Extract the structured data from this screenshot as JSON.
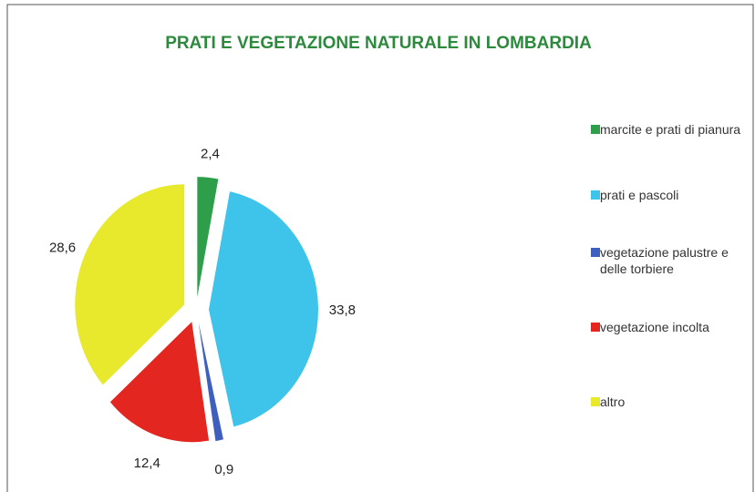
{
  "chart_data": {
    "type": "pie",
    "title": "PRATI E VEGETAZIONE NATURALE IN LOMBARDIA",
    "categories": [
      "marcite e prati di pianura",
      "prati e pascoli",
      "vegetazione palustre e delle torbiere",
      "vegetazione incolta",
      "altro"
    ],
    "values": [
      2.4,
      33.8,
      0.9,
      12.4,
      28.6
    ],
    "value_labels": [
      "2,4",
      "33,8",
      "0,9",
      "12,4",
      "28,6"
    ],
    "colors": [
      "#2e9e4a",
      "#3ec3ea",
      "#3f5fbf",
      "#e3261f",
      "#e8e82c"
    ]
  }
}
